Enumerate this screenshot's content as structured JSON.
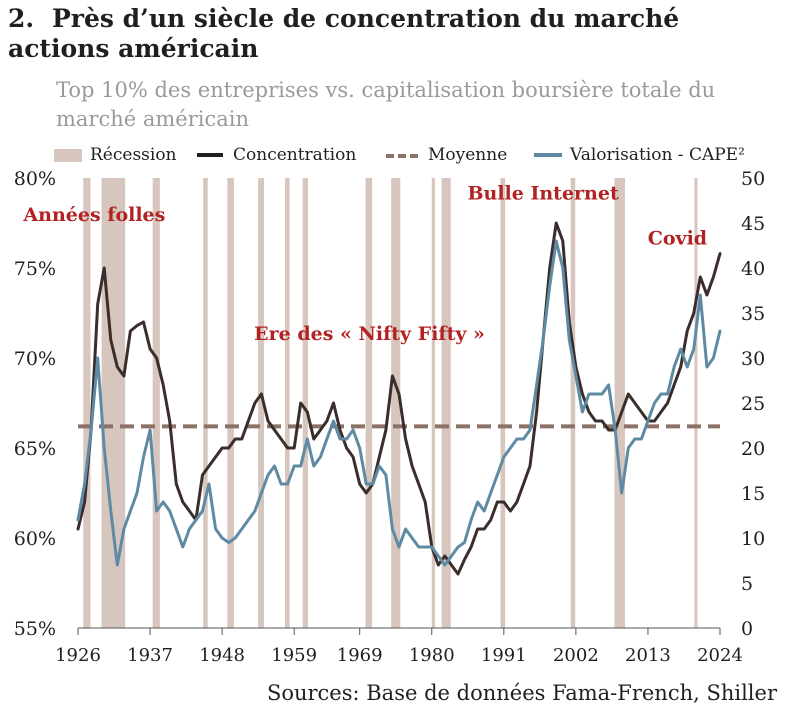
{
  "header": {
    "number": "2.",
    "title": "Près d’un siècle de concentration du marché actions américain",
    "subtitle": "Top 10% des entreprises vs. capitalisation boursière totale du marché américain"
  },
  "legend": {
    "recession": "Récession",
    "concentration": "Concentration",
    "average": "Moyenne",
    "cape": "Valorisation - CAPE²"
  },
  "source": "Sources: Base de données Fama-French, Shiller",
  "colors": {
    "recession": "#d7c6be",
    "concentration": "#3a2d2b",
    "average": "#8c7167",
    "cape": "#5f8aa3",
    "annotation": "#b22222"
  },
  "chart_data": {
    "type": "line",
    "x_ticks": [
      1926,
      1937,
      1948,
      1959,
      1969,
      1980,
      1991,
      2002,
      2013,
      2024
    ],
    "xlim": [
      1926,
      2024
    ],
    "y_left": {
      "ylim": [
        55,
        80
      ],
      "ticks": [
        55,
        60,
        65,
        70,
        75,
        80
      ],
      "tick_suffix": "%"
    },
    "y_right": {
      "ylim": [
        0,
        50
      ],
      "ticks": [
        0,
        5,
        10,
        15,
        20,
        25,
        30,
        35,
        40,
        45,
        50
      ]
    },
    "recessions": [
      [
        1926.8,
        1927.9
      ],
      [
        1929.6,
        1933.2
      ],
      [
        1937.4,
        1938.5
      ],
      [
        1945.1,
        1945.8
      ],
      [
        1948.8,
        1949.8
      ],
      [
        1953.5,
        1954.4
      ],
      [
        1957.6,
        1958.3
      ],
      [
        1960.3,
        1961.1
      ],
      [
        1969.9,
        1970.9
      ],
      [
        1973.8,
        1975.2
      ],
      [
        1980.0,
        1980.5
      ],
      [
        1981.5,
        1982.9
      ],
      [
        1990.5,
        1991.2
      ],
      [
        2001.2,
        2001.9
      ],
      [
        2007.9,
        2009.5
      ],
      [
        2020.1,
        2020.4
      ]
    ],
    "average_concentration": 66.2,
    "annotations": [
      {
        "text": "Années folles",
        "x": 1928.5,
        "y": 77.6
      },
      {
        "text": "Ere des « Nifty Fifty »",
        "x": 1970.5,
        "y": 71.0
      },
      {
        "text": "Bulle Internet",
        "x": 1997.0,
        "y": 78.8
      },
      {
        "text": "Covid",
        "x": 2017.5,
        "y": 76.3
      }
    ],
    "series": [
      {
        "name": "Concentration",
        "axis": "left",
        "x": [
          1926,
          1927,
          1928,
          1929,
          1930,
          1931,
          1932,
          1933,
          1934,
          1935,
          1936,
          1937,
          1938,
          1939,
          1940,
          1941,
          1942,
          1943,
          1944,
          1945,
          1946,
          1947,
          1948,
          1949,
          1950,
          1951,
          1952,
          1953,
          1954,
          1955,
          1956,
          1957,
          1958,
          1959,
          1960,
          1961,
          1962,
          1963,
          1964,
          1965,
          1966,
          1967,
          1968,
          1969,
          1970,
          1971,
          1972,
          1973,
          1974,
          1975,
          1976,
          1977,
          1978,
          1979,
          1980,
          1981,
          1982,
          1983,
          1984,
          1985,
          1986,
          1987,
          1988,
          1989,
          1990,
          1991,
          1992,
          1993,
          1994,
          1995,
          1996,
          1997,
          1998,
          1999,
          2000,
          2001,
          2002,
          2003,
          2004,
          2005,
          2006,
          2007,
          2008,
          2009,
          2010,
          2011,
          2012,
          2013,
          2014,
          2015,
          2016,
          2017,
          2018,
          2019,
          2020,
          2021,
          2022,
          2023,
          2024
        ],
        "values": [
          60.5,
          62,
          66,
          73,
          75,
          71,
          69.5,
          69,
          71.5,
          71.8,
          72,
          70.5,
          70,
          68.5,
          66.5,
          63,
          62,
          61.5,
          61,
          63.5,
          64,
          64.5,
          65,
          65,
          65.5,
          65.5,
          66.5,
          67.5,
          68,
          66.5,
          66,
          65.5,
          65,
          65,
          67.5,
          67,
          65.5,
          66,
          66.5,
          67.5,
          66,
          65,
          64.5,
          63,
          62.5,
          63,
          64.5,
          66,
          69,
          68,
          65.5,
          64,
          63,
          62,
          59.5,
          58.5,
          59,
          58.5,
          58,
          58.8,
          59.5,
          60.5,
          60.5,
          61,
          62,
          62,
          61.5,
          62,
          63,
          64,
          67,
          71,
          75,
          77.5,
          76.5,
          72,
          69.5,
          68,
          67,
          66.5,
          66.5,
          66,
          66,
          67,
          68,
          67.5,
          67,
          66.5,
          66.5,
          67,
          67.5,
          68.5,
          69.5,
          71.5,
          72.5,
          74.5,
          73.5,
          74.5,
          75.8
        ]
      },
      {
        "name": "Valorisation - CAPE²",
        "axis": "right",
        "x": [
          1926,
          1927,
          1928,
          1929,
          1930,
          1931,
          1932,
          1933,
          1934,
          1935,
          1936,
          1937,
          1938,
          1939,
          1940,
          1941,
          1942,
          1943,
          1944,
          1945,
          1946,
          1947,
          1948,
          1949,
          1950,
          1951,
          1952,
          1953,
          1954,
          1955,
          1956,
          1957,
          1958,
          1959,
          1960,
          1961,
          1962,
          1963,
          1964,
          1965,
          1966,
          1967,
          1968,
          1969,
          1970,
          1971,
          1972,
          1973,
          1974,
          1975,
          1976,
          1977,
          1978,
          1979,
          1980,
          1981,
          1982,
          1983,
          1984,
          1985,
          1986,
          1987,
          1988,
          1989,
          1990,
          1991,
          1992,
          1993,
          1994,
          1995,
          1996,
          1997,
          1998,
          1999,
          2000,
          2001,
          2002,
          2003,
          2004,
          2005,
          2006,
          2007,
          2008,
          2009,
          2010,
          2011,
          2012,
          2013,
          2014,
          2015,
          2016,
          2017,
          2018,
          2019,
          2020,
          2021,
          2022,
          2023,
          2024
        ],
        "values": [
          12,
          16,
          22,
          30,
          20,
          13,
          7,
          11,
          13,
          15,
          19,
          22,
          13,
          14,
          13,
          11,
          9,
          11,
          12,
          13,
          16,
          11,
          10,
          9.5,
          10,
          11,
          12,
          13,
          15,
          17,
          18,
          16,
          16,
          18,
          18,
          21,
          18,
          19,
          21,
          23,
          21,
          21,
          22,
          20,
          16,
          16,
          18,
          17,
          11,
          9,
          11,
          10,
          9,
          9,
          9,
          8,
          7,
          8,
          9,
          9.5,
          12,
          14,
          13,
          15,
          17,
          19,
          20,
          21,
          21,
          22,
          27,
          32,
          38,
          43,
          40,
          32,
          28,
          24,
          26,
          26,
          26,
          27,
          22,
          15,
          20,
          21,
          21,
          23,
          25,
          26,
          26,
          29,
          31,
          29,
          31,
          37,
          29,
          30,
          33
        ]
      }
    ]
  }
}
